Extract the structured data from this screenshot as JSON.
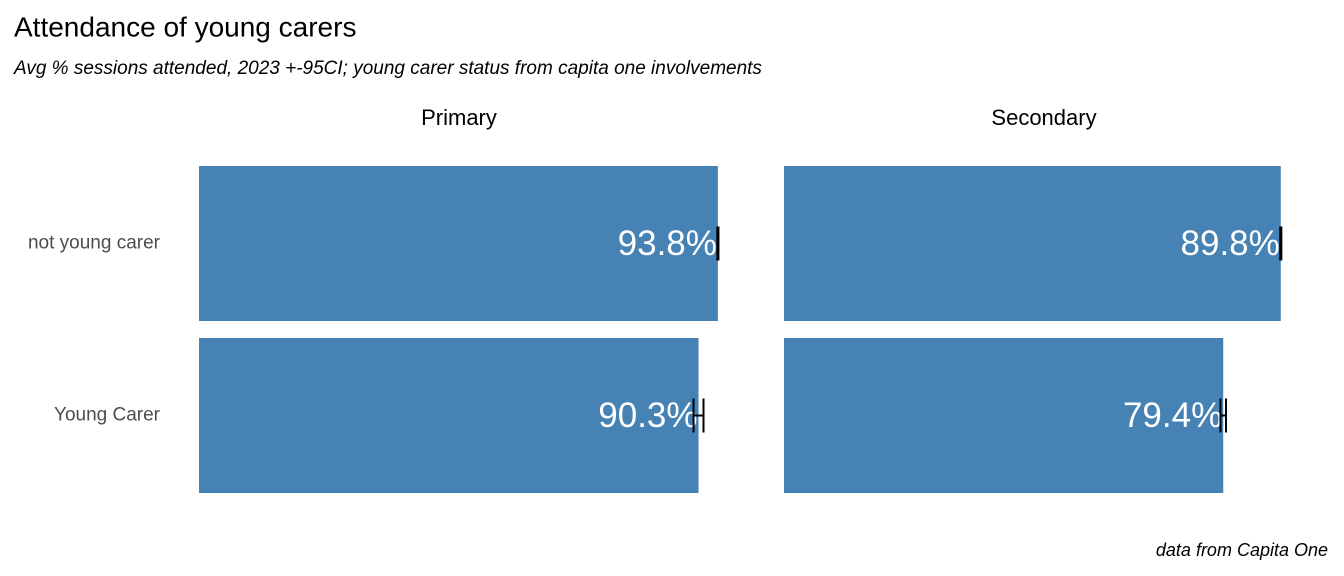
{
  "chart_data": {
    "type": "bar",
    "title": "Attendance of young carers",
    "subtitle": "Avg % sessions attended, 2023 +-95CI; young carer status from capita one involvements",
    "caption": "data from Capita One",
    "categories": [
      "not young carer",
      "Young Carer"
    ],
    "color": "#4682b4",
    "xlim": [
      0,
      94
    ],
    "panels": [
      {
        "title": "Primary",
        "values": [
          93.8,
          90.3
        ],
        "value_labels": [
          "93.8%",
          "90.3%"
        ],
        "errors": [
          0.1,
          0.9
        ]
      },
      {
        "title": "Secondary",
        "values": [
          89.8,
          79.4
        ],
        "value_labels": [
          "89.8%",
          "79.4%"
        ],
        "errors": [
          0.1,
          0.5
        ]
      }
    ]
  }
}
